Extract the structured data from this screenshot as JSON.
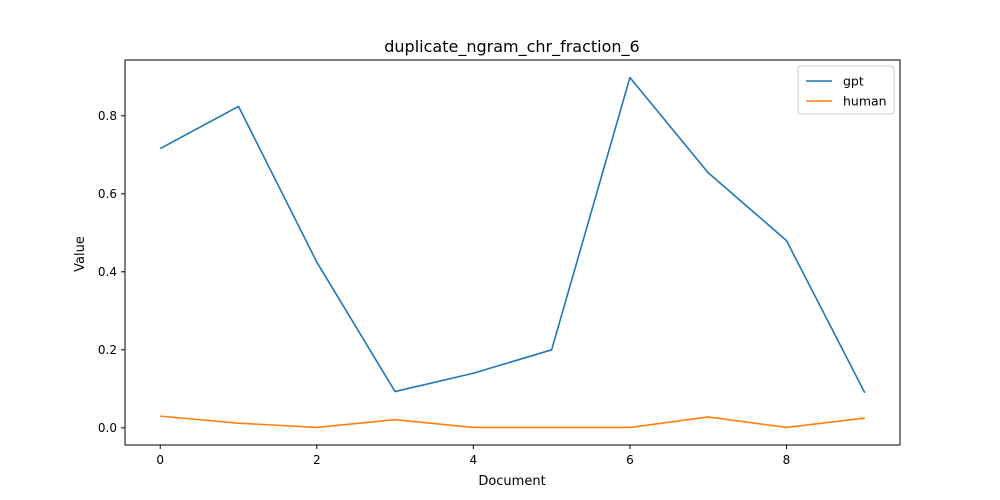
{
  "chart_data": {
    "type": "line",
    "title": "duplicate_ngram_chr_fraction_6",
    "xlabel": "Document",
    "ylabel": "Value",
    "x": [
      0,
      1,
      2,
      3,
      4,
      5,
      6,
      7,
      8,
      9
    ],
    "series": [
      {
        "name": "gpt",
        "color": "#1f77b4",
        "values": [
          0.716,
          0.824,
          0.425,
          0.093,
          0.14,
          0.2,
          0.898,
          0.654,
          0.48,
          0.09
        ]
      },
      {
        "name": "human",
        "color": "#ff7f0e",
        "values": [
          0.03,
          0.012,
          0.001,
          0.021,
          0.001,
          0.001,
          0.001,
          0.028,
          0.001,
          0.025
        ]
      }
    ],
    "xlim": [
      -0.45,
      9.45
    ],
    "ylim": [
      -0.044,
      0.943
    ],
    "xticks": [
      0,
      2,
      4,
      6,
      8
    ],
    "yticks": [
      0.0,
      0.2,
      0.4,
      0.6,
      0.8
    ],
    "xtick_labels": [
      "0",
      "2",
      "4",
      "6",
      "8"
    ],
    "ytick_labels": [
      "0.0",
      "0.2",
      "0.4",
      "0.6",
      "0.8"
    ],
    "grid": false,
    "legend_position": "top-right"
  }
}
